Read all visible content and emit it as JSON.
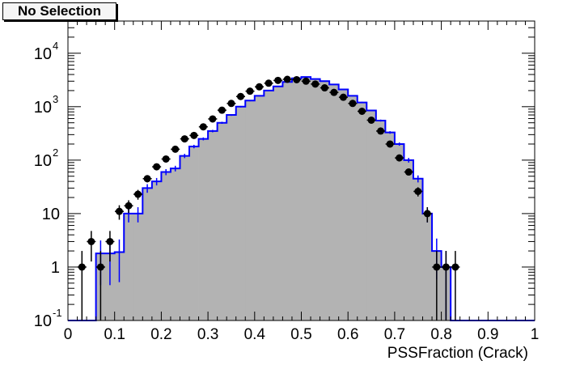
{
  "chart_data": {
    "type": "histogram",
    "title": "No Selection",
    "xlabel": "PSSFraction (Crack)",
    "ylabel": "",
    "xlim": [
      0,
      1
    ],
    "ylim": [
      0.1,
      40000
    ],
    "yscale": "log",
    "grid": false,
    "legend": "none",
    "x_ticks": [
      "0",
      "0.1",
      "0.2",
      "0.3",
      "0.4",
      "0.5",
      "0.6",
      "0.7",
      "0.8",
      "0.9",
      "1"
    ],
    "y_ticks": [
      {
        "value": 0.1,
        "label": "10",
        "exp": "-1"
      },
      {
        "value": 1,
        "label": "1",
        "exp": ""
      },
      {
        "value": 10,
        "label": "10",
        "exp": ""
      },
      {
        "value": 100,
        "label": "10",
        "exp": "2"
      },
      {
        "value": 1000,
        "label": "10",
        "exp": "3"
      },
      {
        "value": 10000,
        "label": "10",
        "exp": "4"
      }
    ],
    "bin_width": 0.02,
    "bins_low_edge": [
      0.0,
      0.02,
      0.04,
      0.06,
      0.08,
      0.1,
      0.12,
      0.14,
      0.16,
      0.18,
      0.2,
      0.22,
      0.24,
      0.26,
      0.28,
      0.3,
      0.32,
      0.34,
      0.36,
      0.38,
      0.4,
      0.42,
      0.44,
      0.46,
      0.48,
      0.5,
      0.52,
      0.54,
      0.56,
      0.58,
      0.6,
      0.62,
      0.64,
      0.66,
      0.68,
      0.7,
      0.72,
      0.74,
      0.76,
      0.78,
      0.8,
      0.82,
      0.84,
      0.86,
      0.88,
      0.9,
      0.92,
      0.94,
      0.96,
      0.98
    ],
    "series": [
      {
        "kind": "filled-histogram",
        "color": "#b3b3b3",
        "values": [
          0,
          0,
          0,
          1.8,
          1.8,
          1.9,
          10,
          10,
          30,
          40,
          60,
          70,
          120,
          180,
          250,
          350,
          500,
          700,
          1000,
          1300,
          1600,
          2000,
          2400,
          2900,
          3400,
          3600,
          3300,
          3000,
          2600,
          2100,
          1600,
          1200,
          850,
          550,
          330,
          200,
          100,
          45,
          10,
          2,
          1,
          0,
          0,
          0,
          0,
          0,
          0,
          0,
          0,
          0
        ]
      },
      {
        "kind": "step-line",
        "color": "#0000ff",
        "values": [
          0,
          0,
          0,
          1.8,
          1.8,
          1.9,
          10,
          10,
          30,
          40,
          60,
          70,
          120,
          180,
          250,
          350,
          500,
          700,
          1000,
          1300,
          1600,
          2000,
          2400,
          2900,
          3400,
          3600,
          3300,
          3000,
          2600,
          2100,
          1600,
          1200,
          850,
          550,
          330,
          200,
          100,
          45,
          10,
          2,
          1,
          0,
          0,
          0,
          0,
          0,
          0,
          0,
          0,
          0
        ]
      },
      {
        "kind": "points-with-errors",
        "color": "#000000",
        "x": [
          0.03,
          0.05,
          0.07,
          0.09,
          0.11,
          0.13,
          0.15,
          0.17,
          0.19,
          0.21,
          0.23,
          0.25,
          0.27,
          0.29,
          0.31,
          0.33,
          0.35,
          0.37,
          0.39,
          0.41,
          0.43,
          0.45,
          0.47,
          0.49,
          0.51,
          0.53,
          0.55,
          0.57,
          0.59,
          0.61,
          0.63,
          0.65,
          0.67,
          0.69,
          0.71,
          0.73,
          0.75,
          0.77,
          0.79,
          0.81,
          0.83
        ],
        "y": [
          1,
          3,
          1,
          3,
          11,
          14,
          23,
          45,
          75,
          105,
          160,
          250,
          290,
          420,
          590,
          860,
          1150,
          1550,
          1950,
          2350,
          2750,
          3100,
          3250,
          3200,
          3000,
          2650,
          2250,
          1850,
          1500,
          1150,
          820,
          560,
          350,
          200,
          110,
          60,
          26,
          10,
          1,
          1,
          1
        ]
      }
    ]
  }
}
